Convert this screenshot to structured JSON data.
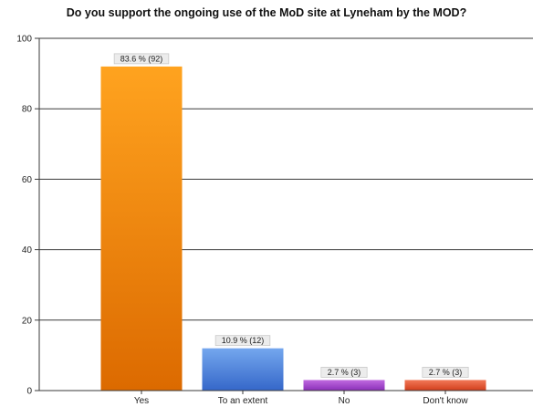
{
  "chart_data": {
    "type": "bar",
    "title": "Do you support the ongoing use of the MoD site at Lyneham by the MOD?",
    "xlabel": "",
    "ylabel": "",
    "ylim": [
      0,
      100
    ],
    "yticks": [
      0,
      20,
      40,
      60,
      80,
      100
    ],
    "grid": true,
    "legend": "none",
    "categories": [
      "Yes",
      "To an extent",
      "No",
      "Don't know"
    ],
    "values": [
      92,
      12,
      3,
      3
    ],
    "data_labels": [
      "83.6 % (92)",
      "10.9 % (12)",
      "2.7 % (3)",
      "2.7 % (3)"
    ],
    "colors": [
      {
        "light": "#ffa31f",
        "dark": "#dc6a00"
      },
      {
        "light": "#74a7ee",
        "dark": "#3567c9"
      },
      {
        "light": "#c06ae0",
        "dark": "#8a2fb8"
      },
      {
        "light": "#f27858",
        "dark": "#d13f1c"
      }
    ]
  }
}
